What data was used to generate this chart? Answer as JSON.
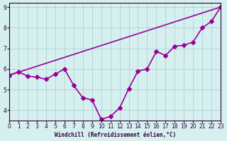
{
  "xlabel": "Windchill (Refroidissement éolien,°C)",
  "xlim": [
    0,
    23
  ],
  "ylim": [
    3.5,
    9.2
  ],
  "xticks": [
    0,
    1,
    2,
    3,
    4,
    5,
    6,
    7,
    8,
    9,
    10,
    11,
    12,
    13,
    14,
    15,
    16,
    17,
    18,
    19,
    20,
    21,
    22,
    23
  ],
  "yticks": [
    4,
    5,
    6,
    7,
    8,
    9
  ],
  "background_color": "#d6f0f0",
  "grid_color": "#aacccc",
  "line_color": "#990099",
  "line1_x": [
    0,
    1,
    2,
    3,
    4,
    5,
    6,
    7,
    8,
    9,
    10,
    11,
    12,
    13,
    14,
    15,
    16,
    17,
    18,
    19,
    20,
    21,
    22,
    23
  ],
  "line1_y": [
    5.7,
    5.85,
    5.65,
    5.6,
    5.5,
    5.75,
    6.0,
    5.2,
    4.6,
    4.5,
    3.55,
    3.7,
    4.1,
    5.05,
    5.9,
    6.0,
    6.85,
    6.65,
    7.1,
    7.15,
    7.3,
    8.0,
    8.3,
    9.0
  ],
  "line2_x": [
    0,
    23
  ],
  "line2_y": [
    5.7,
    9.0
  ],
  "marker": "D",
  "markersize": 3,
  "linewidth": 1.2
}
